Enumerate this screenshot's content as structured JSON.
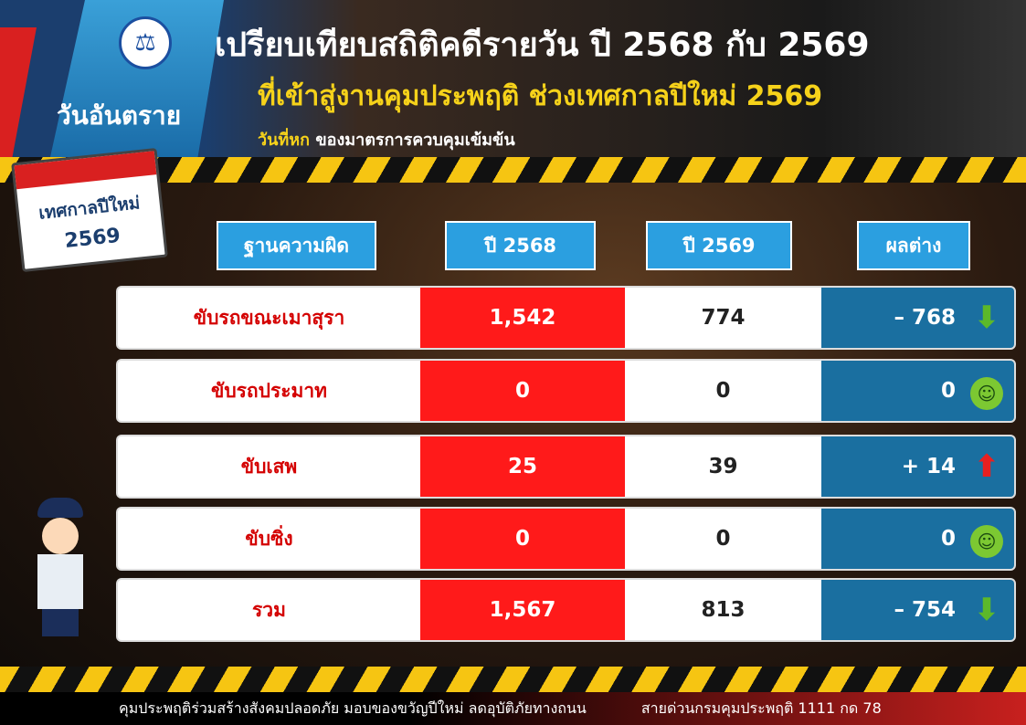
{
  "header": {
    "badge": "วันอันตราย",
    "title": "เปรียบเทียบสถิติคดีรายวัน ปี 2568 กับ 2569",
    "subtitle": "ที่เข้าสู่งานคุมประพฤติ ช่วงเทศกาลปีใหม่ 2569",
    "day_label": "วันที่หก",
    "day_desc": "ของมาตรการควบคุมเข้มข้น"
  },
  "calendar": {
    "line1": "เทศกาลปีใหม่",
    "line2": "2569"
  },
  "table": {
    "columns": [
      "ฐานความผิด",
      "ปี 2568",
      "ปี 2569",
      "ผลต่าง"
    ],
    "rows": [
      {
        "offense": "ขับรถขณะเมาสุรา",
        "y2568": "1,542",
        "y2569": "774",
        "diff": "– 768",
        "icon": "arrow-down-icon"
      },
      {
        "offense": "ขับรถประมาท",
        "y2568": "0",
        "y2569": "0",
        "diff": "0",
        "icon": "smiley-icon"
      },
      {
        "offense": "ขับเสพ",
        "y2568": "25",
        "y2569": "39",
        "diff": "+ 14",
        "icon": "arrow-up-icon"
      },
      {
        "offense": "ขับซิ่ง",
        "y2568": "0",
        "y2569": "0",
        "diff": "0",
        "icon": "smiley-icon"
      },
      {
        "offense": "รวม",
        "y2568": "1,567",
        "y2569": "813",
        "diff": "– 754",
        "icon": "arrow-down-icon"
      }
    ]
  },
  "footer": {
    "slogan": "คุมประพฤติร่วมสร้างสังคมปลอดภัย มอบของขวัญปีใหม่ ลดอุบัติภัยทางถนน",
    "hotline": "สายด่วนกรมคุมประพฤติ 1111 กด 78"
  },
  "colors": {
    "accent_yellow": "#f6d21a",
    "red": "#ff1a1a",
    "diff_blue": "#1a6fa0",
    "header_blue": "#2b9fe0"
  }
}
